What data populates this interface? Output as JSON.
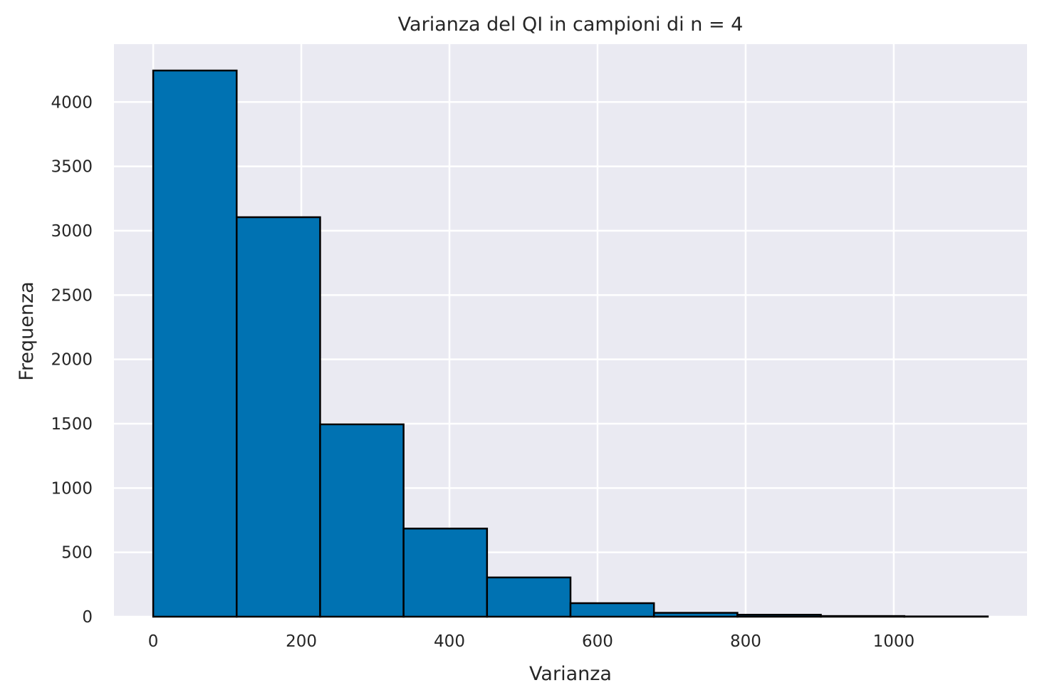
{
  "chart_data": {
    "type": "bar",
    "subtype": "histogram",
    "title": "Varianza del QI in campioni di n = 4",
    "xlabel": "Varianza",
    "ylabel": "Frequenza",
    "xlim": [
      -53,
      1180
    ],
    "ylim": [
      0,
      4450
    ],
    "xticks": [
      0,
      200,
      400,
      600,
      800,
      1000
    ],
    "yticks": [
      0,
      500,
      1000,
      1500,
      2000,
      2500,
      3000,
      3500,
      4000
    ],
    "bin_edges": [
      0,
      112.7,
      225.4,
      338.1,
      450.8,
      563.5,
      676.2,
      788.9,
      901.6,
      1014.3,
      1127
    ],
    "values": [
      4245,
      3105,
      1495,
      685,
      305,
      105,
      30,
      15,
      5,
      2
    ],
    "grid": true,
    "colors": {
      "bar_fill": "#0072b2",
      "bar_edge": "#000000",
      "axes_background": "#eaeaf2",
      "grid": "#ffffff"
    }
  }
}
